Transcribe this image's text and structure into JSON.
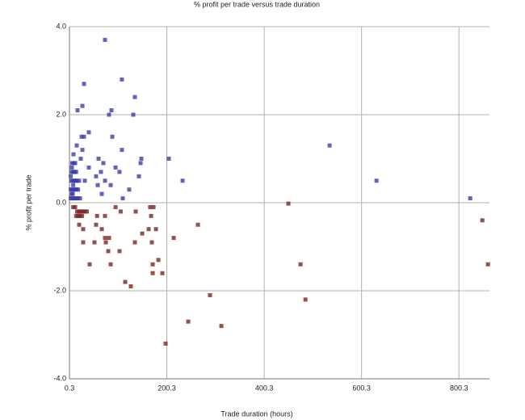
{
  "chart_data": {
    "type": "scatter",
    "title": "% profit per trade versus trade duration",
    "x_label": "Trade duration (hours)",
    "y_label": "% profit per trade",
    "xlim": [
      0.3,
      863
    ],
    "ylim": [
      -4,
      4
    ],
    "xticks": [
      0.3,
      200.3,
      400.3,
      600.3,
      800.3
    ],
    "yticks": [
      {
        "value": 4,
        "label": "4.0"
      },
      {
        "value": 2,
        "label": "2.0"
      },
      {
        "value": 0,
        "label": "0.0"
      },
      {
        "value": -2,
        "label": "-2.0"
      },
      {
        "value": -4,
        "label": "-4.0"
      }
    ],
    "grid": true,
    "series": [
      {
        "color": "#3c3ca8",
        "x": [
          73.3,
          108,
          30.2,
          134.7,
          26.9,
          16.9,
          86.6,
          81.6,
          131.4,
          40.1,
          25.2,
          30.2,
          88.3,
          534.7,
          15.2,
          108,
          26.9,
          8.6,
          148,
          204.4,
          60,
          23.5,
          146.4,
          70,
          40.1,
          95,
          5.3,
          65,
          103,
          55,
          143,
          631,
          232.7,
          31.8,
          73.3,
          58.4,
          85,
          123,
          66.7,
          109.8,
          823.5,
          3,
          6,
          9,
          12,
          15,
          18,
          22,
          3,
          6,
          9,
          12,
          15,
          18,
          4,
          7,
          10,
          13,
          16,
          20,
          5,
          8,
          11,
          14,
          6,
          9,
          12,
          5,
          8,
          3,
          7
        ],
        "y": [
          3.7,
          2.8,
          2.7,
          2.4,
          2.2,
          2.1,
          2.1,
          2.0,
          2.0,
          1.6,
          1.5,
          1.5,
          1.5,
          1.3,
          1.3,
          1.2,
          1.2,
          1.1,
          1.0,
          1.0,
          1.0,
          1.0,
          0.9,
          0.9,
          0.8,
          0.8,
          0.8,
          0.7,
          0.7,
          0.6,
          0.6,
          0.5,
          0.5,
          0.5,
          0.5,
          0.4,
          0.4,
          0.3,
          0.2,
          0.1,
          0.1,
          0.1,
          0.1,
          0.1,
          0.1,
          0.1,
          0.1,
          0.1,
          0.3,
          0.3,
          0.3,
          0.3,
          0.3,
          0.3,
          0.5,
          0.5,
          0.5,
          0.5,
          0.5,
          0.5,
          0.7,
          0.7,
          0.7,
          0.7,
          0.9,
          0.9,
          0.9,
          0.2,
          0.4,
          0.6,
          0.2
        ]
      },
      {
        "color": "#7a2424",
        "x": [
          450,
          848.4,
          860,
          475,
          485,
          264.2,
          214.4,
          289,
          244.3,
          312.3,
          197.8,
          191.2,
          183,
          171.3,
          171.3,
          169.6,
          163,
          178,
          168,
          173,
          166,
          149.7,
          134.7,
          126.4,
          114.8,
          103.2,
          80,
          75,
          81.6,
          73.3,
          85,
          41.8,
          28.5,
          51.7,
          66.7,
          55,
          28.5,
          20.2,
          136.4,
          95,
          105.5,
          57,
          73.3,
          8,
          12,
          16,
          20,
          24,
          28,
          32,
          36,
          14,
          18,
          22,
          26
        ],
        "y": [
          -0.02,
          -0.4,
          -1.4,
          -1.4,
          -2.2,
          -0.5,
          -0.8,
          -2.1,
          -2.7,
          -2.8,
          -3.2,
          -1.6,
          -1.3,
          -1.4,
          -1.6,
          -0.9,
          -0.6,
          -0.6,
          -0.3,
          -0.1,
          -0.1,
          -0.7,
          -0.9,
          -1.9,
          -1.8,
          -1.1,
          -1.1,
          -0.9,
          -0.8,
          -0.8,
          -1.4,
          -1.4,
          -0.9,
          -0.9,
          -0.6,
          -0.5,
          -0.6,
          -0.5,
          -0.2,
          -0.1,
          -0.2,
          -0.3,
          -0.3,
          -0.1,
          -0.1,
          -0.2,
          -0.2,
          -0.2,
          -0.2,
          -0.2,
          -0.2,
          -0.3,
          -0.3,
          -0.3,
          -0.3
        ]
      }
    ]
  }
}
